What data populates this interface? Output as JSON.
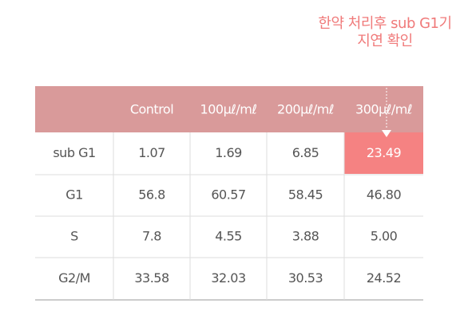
{
  "annotation": {
    "lines": [
      "한약 처리후 sub G1기",
      "지연 확인"
    ]
  },
  "table": {
    "columns": [
      "Control",
      "100μℓ/mℓ",
      "200μℓ/mℓ",
      "300μℓ/mℓ"
    ],
    "rows": [
      [
        "sub G1",
        "1.07",
        "1.69",
        "6.85",
        "23.49"
      ],
      [
        "G1",
        "56.8",
        "60.57",
        "58.45",
        "46.80"
      ],
      [
        "S",
        "7.8",
        "4.55",
        "3.88",
        "5.00"
      ],
      [
        "G2/M",
        "33.58",
        "32.03",
        "30.53",
        "24.52"
      ]
    ]
  }
}
